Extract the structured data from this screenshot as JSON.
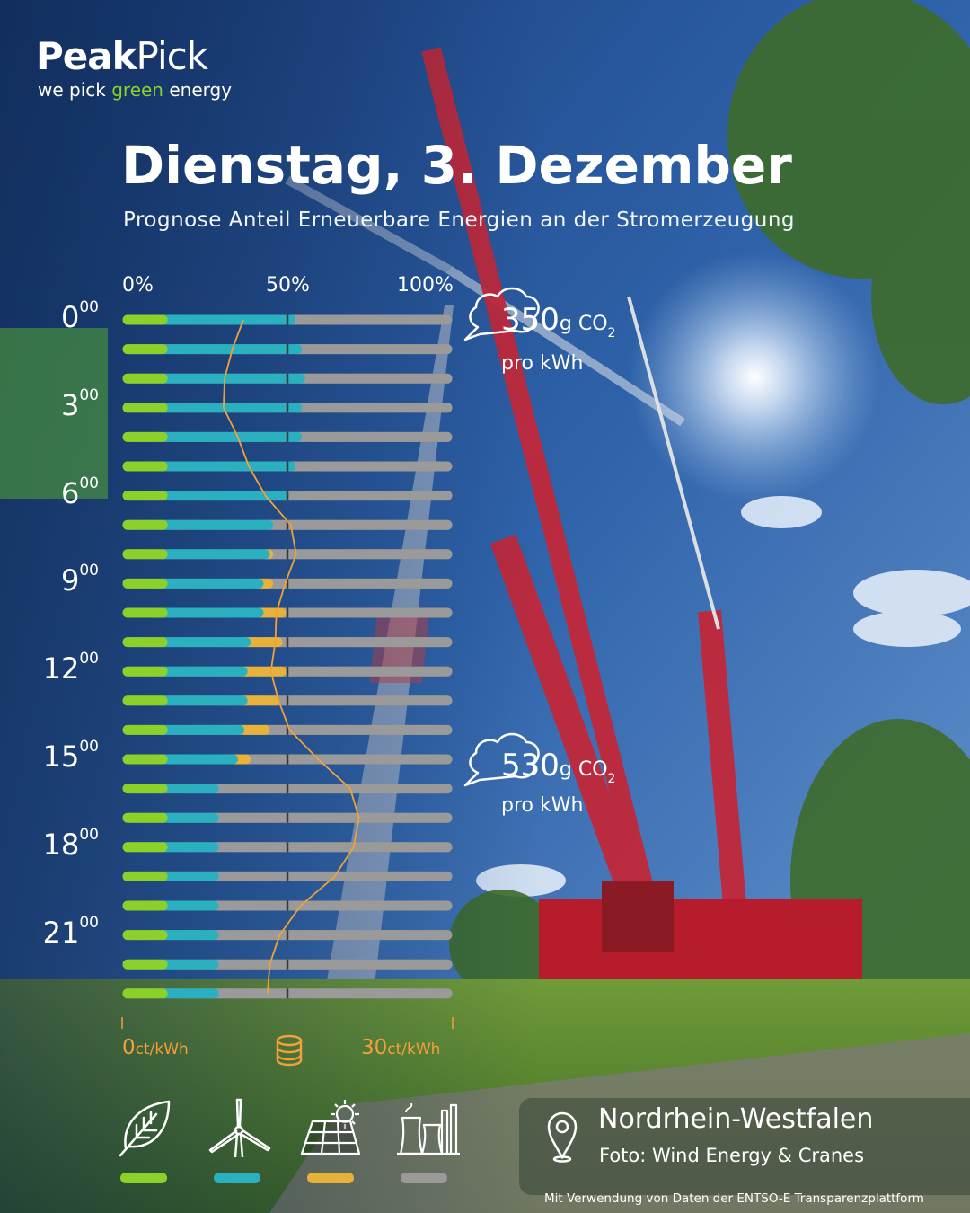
{
  "brand": {
    "name_bold": "Peak",
    "name_light": "Pick",
    "tagline_pre": "we pick ",
    "tagline_green": "green",
    "tagline_post": " energy"
  },
  "title": "Dienstag, 3. Dezember",
  "subtitle": "Prognose Anteil Erneuerbare Energien an der Stromerzeugung",
  "hour_labels": [
    {
      "h": "0",
      "m": "00"
    },
    {
      "h": "3",
      "m": "00"
    },
    {
      "h": "6",
      "m": "00"
    },
    {
      "h": "9",
      "m": "00"
    },
    {
      "h": "12",
      "m": "00"
    },
    {
      "h": "15",
      "m": "00"
    },
    {
      "h": "18",
      "m": "00"
    },
    {
      "h": "21",
      "m": "00"
    }
  ],
  "co2_notes": [
    {
      "value": "350",
      "unit": "g CO",
      "sub2": "2",
      "per": "pro kWh"
    },
    {
      "value": "530",
      "unit": "g CO",
      "sub2": "2",
      "per": "pro kWh"
    }
  ],
  "price_axis": {
    "min_value": "0",
    "max_value": "30",
    "unit": "ct/kWh"
  },
  "location": "Nordrhein-Westfalen",
  "photo_credit": "Foto: Wind Energy & Cranes",
  "footnote": "Mit Verwendung von Daten der ENTSO-E Transparenzplattform",
  "colors": {
    "biomass": "#8bd12a",
    "wind": "#2ab0bf",
    "solar": "#e8b23a",
    "fossil": "#9a9a9a",
    "price_line": "#f0a13a"
  },
  "legend": [
    {
      "icon": "leaf-icon",
      "key": "biomass"
    },
    {
      "icon": "wind-turbine-icon",
      "key": "wind"
    },
    {
      "icon": "solar-panel-icon",
      "key": "solar"
    },
    {
      "icon": "power-plant-icon",
      "key": "fossil"
    }
  ],
  "chart_data": {
    "type": "bar",
    "orientation": "horizontal-stacked",
    "x_axis_top": {
      "ticks": [
        "0%",
        "50%",
        "100%"
      ],
      "range": [
        0,
        100
      ],
      "unit": "%"
    },
    "x_axis_bottom": {
      "range": [
        0,
        30
      ],
      "unit": "ct/kWh"
    },
    "categories": [
      "0",
      "1",
      "2",
      "3",
      "4",
      "5",
      "6",
      "7",
      "8",
      "9",
      "10",
      "11",
      "12",
      "13",
      "14",
      "15",
      "16",
      "17",
      "18",
      "19",
      "20",
      "21",
      "22",
      "23"
    ],
    "series": [
      {
        "key": "biomass",
        "values": [
          11,
          11,
          11,
          11,
          11,
          11,
          11,
          11,
          11,
          11,
          11,
          11,
          11,
          11,
          11,
          11,
          11,
          11,
          11,
          11,
          11,
          11,
          11,
          11
        ]
      },
      {
        "key": "wind",
        "values": [
          40,
          42,
          43,
          42,
          42,
          40,
          38,
          33,
          32,
          30,
          30,
          26,
          25,
          25,
          24,
          22,
          16,
          16,
          16,
          16,
          16,
          16,
          16,
          16
        ]
      },
      {
        "key": "solar",
        "values": [
          0,
          0,
          0,
          0,
          0,
          0,
          0,
          0,
          1,
          3,
          7,
          10,
          12,
          10,
          8,
          4,
          0,
          0,
          0,
          0,
          0,
          0,
          0,
          0
        ]
      },
      {
        "key": "fossil",
        "values": [
          49,
          47,
          46,
          47,
          47,
          49,
          51,
          56,
          56,
          56,
          52,
          53,
          52,
          54,
          57,
          63,
          73,
          73,
          73,
          73,
          73,
          73,
          73,
          73
        ]
      }
    ],
    "price_line": {
      "name": "ct/kWh",
      "values": [
        11,
        10,
        9.3,
        9.2,
        10.5,
        11.5,
        13,
        15.3,
        15.8,
        14.8,
        14,
        13.9,
        13.5,
        14.2,
        15.2,
        17.8,
        20.7,
        21.5,
        21,
        19.3,
        16.2,
        14.3,
        13.4,
        13.2
      ]
    },
    "co2_annotations": [
      {
        "hour": "0",
        "value": 350,
        "unit": "g CO2 pro kWh"
      },
      {
        "hour": "15",
        "value": 530,
        "unit": "g CO2 pro kWh"
      }
    ],
    "grid": false
  }
}
